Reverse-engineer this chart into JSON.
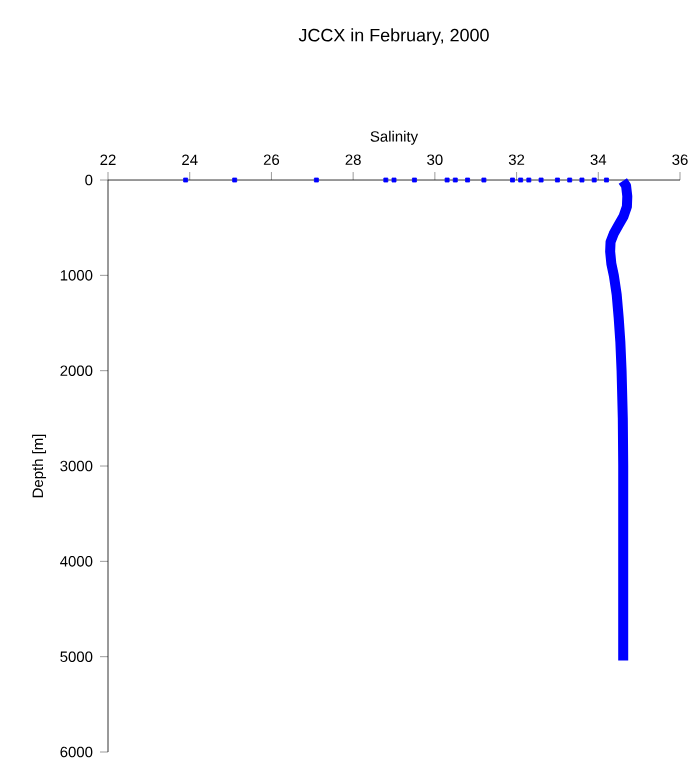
{
  "chart_data": {
    "type": "line",
    "title": "JCCX in February, 2000",
    "xlabel": "Salinity",
    "ylabel": "Depth [m]",
    "xlim": [
      22,
      36
    ],
    "xticks": [
      22,
      24,
      26,
      28,
      30,
      32,
      34,
      36
    ],
    "ylim": [
      6000,
      0
    ],
    "yticks": [
      0,
      1000,
      2000,
      3000,
      4000,
      5000,
      6000
    ],
    "grid": false,
    "series": [
      {
        "type": "scatter",
        "color": "#0000ff",
        "marker": "square",
        "x": [
          23.9,
          25.1,
          27.1,
          28.8,
          29.0,
          29.5,
          30.3,
          30.5,
          30.8,
          31.2,
          31.9,
          32.1,
          32.3,
          32.6,
          33.0,
          33.3,
          33.6,
          33.9,
          34.2
        ],
        "values": [
          0,
          0,
          0,
          0,
          0,
          0,
          0,
          0,
          0,
          0,
          0,
          0,
          0,
          0,
          0,
          0,
          0,
          0,
          0
        ]
      },
      {
        "color": "#0000ff",
        "marker": "none",
        "line_style": "solid",
        "x": [
          34.6,
          34.68,
          34.71,
          34.7,
          34.62,
          34.5,
          34.38,
          34.3,
          34.29,
          34.32,
          34.38,
          34.45,
          34.5,
          34.54,
          34.57,
          34.6,
          34.61,
          34.61
        ],
        "values": [
          10,
          60,
          170,
          280,
          380,
          470,
          560,
          650,
          750,
          880,
          1000,
          1200,
          1450,
          1700,
          2000,
          2500,
          3000,
          5040
        ]
      }
    ]
  }
}
